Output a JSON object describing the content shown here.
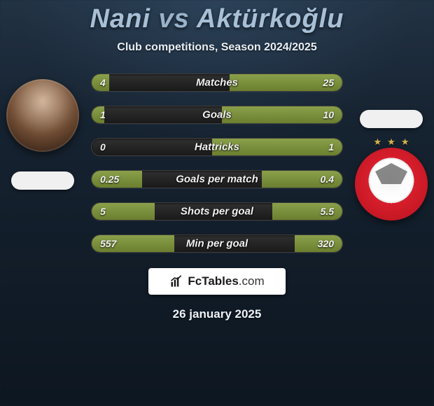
{
  "header": {
    "player1": "Nani",
    "vs": "vs",
    "player2": "Aktürkoğlu",
    "subtitle": "Club competitions, Season 2024/2025"
  },
  "colors": {
    "bar_track": "#242424",
    "bar_fill": "#7e9440",
    "text": "#f2f2f2",
    "title": "#a8c0d6",
    "branding_bg": "#ffffff",
    "branding_text": "#1a1a1a"
  },
  "stats": [
    {
      "label": "Matches",
      "left_value": "4",
      "right_value": "25",
      "left_pct": 7,
      "right_pct": 45
    },
    {
      "label": "Goals",
      "left_value": "1",
      "right_value": "10",
      "left_pct": 5,
      "right_pct": 48
    },
    {
      "label": "Hattricks",
      "left_value": "0",
      "right_value": "1",
      "left_pct": 0,
      "right_pct": 52
    },
    {
      "label": "Goals per match",
      "left_value": "0.25",
      "right_value": "0.4",
      "left_pct": 20,
      "right_pct": 32
    },
    {
      "label": "Shots per goal",
      "left_value": "5",
      "right_value": "5.5",
      "left_pct": 25,
      "right_pct": 28
    },
    {
      "label": "Min per goal",
      "left_value": "557",
      "right_value": "320",
      "left_pct": 33,
      "right_pct": 19
    }
  ],
  "branding": {
    "text_main": "FcTables",
    "text_suffix": ".com"
  },
  "date": "26 january 2025",
  "icons": {
    "chart": "chart-icon"
  }
}
